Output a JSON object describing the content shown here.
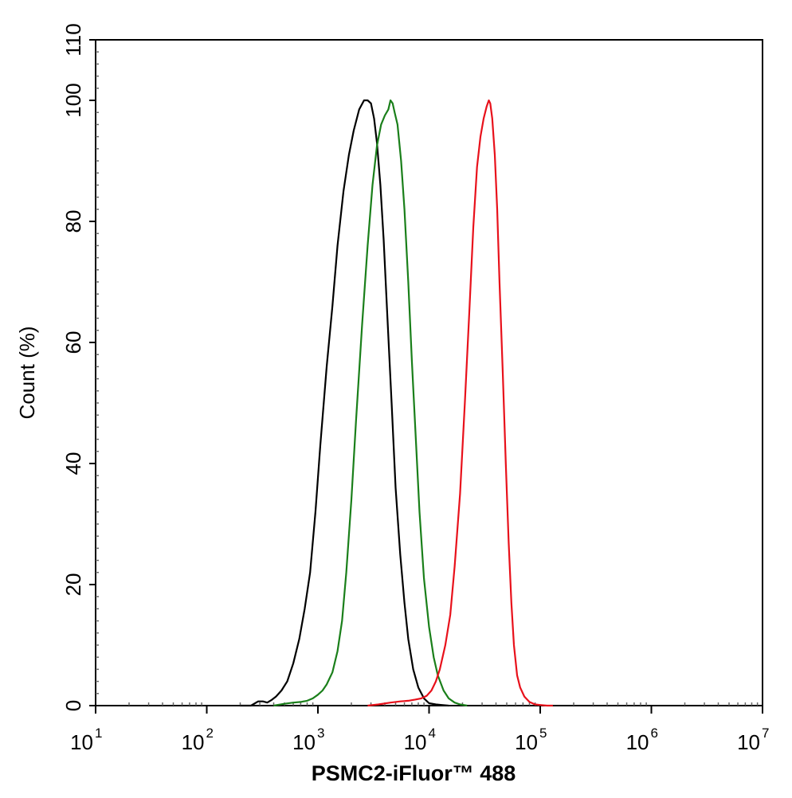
{
  "chart_data": {
    "type": "line",
    "xscale": "log",
    "xlim": [
      10,
      10000000
    ],
    "ylim": [
      0,
      110
    ],
    "grid": false,
    "legend": "none",
    "xlabel": "PSMC2-iFluor™ 488",
    "ylabel": "Count  (%)",
    "x_ticks": [
      {
        "base": "10",
        "exp": "1",
        "value": 10
      },
      {
        "base": "10",
        "exp": "2",
        "value": 100
      },
      {
        "base": "10",
        "exp": "3",
        "value": 1000
      },
      {
        "base": "10",
        "exp": "4",
        "value": 10000
      },
      {
        "base": "10",
        "exp": "5",
        "value": 100000
      },
      {
        "base": "10",
        "exp": "6",
        "value": 1000000
      },
      {
        "base": "10",
        "exp": "7",
        "value": 10000000
      }
    ],
    "y_ticks": [
      {
        "label": "0",
        "value": 0
      },
      {
        "label": "20",
        "value": 20
      },
      {
        "label": "40",
        "value": 40
      },
      {
        "label": "60",
        "value": 60
      },
      {
        "label": "80",
        "value": 80
      },
      {
        "label": "100",
        "value": 100
      },
      {
        "label": "110",
        "value": 110
      }
    ],
    "series": [
      {
        "color": "#000000",
        "x": [
          200,
          250,
          290,
          320,
          350,
          380,
          420,
          470,
          530,
          600,
          680,
          760,
          850,
          950,
          1050,
          1200,
          1350,
          1500,
          1700,
          1900,
          2100,
          2350,
          2600,
          2800,
          3000,
          3200,
          3400,
          3650,
          3900,
          4200,
          4600,
          5000,
          5500,
          6000,
          6500,
          7200,
          8000,
          9000,
          10000,
          11500,
          13000,
          15000
        ],
        "y": [
          0,
          0,
          0.7,
          0.7,
          0.5,
          0.9,
          1.5,
          2.5,
          4,
          7,
          11,
          16,
          22,
          32,
          43,
          56,
          66,
          76,
          85,
          91,
          95,
          98.5,
          100,
          100,
          99.5,
          97,
          93,
          86,
          77,
          65,
          50,
          36,
          25,
          17,
          11,
          6,
          3,
          1.2,
          0.4,
          0.2,
          0.1,
          0
        ]
      },
      {
        "color": "#1a7f1a",
        "x": [
          400,
          500,
          600,
          700,
          800,
          900,
          1000,
          1100,
          1200,
          1350,
          1500,
          1650,
          1800,
          2000,
          2200,
          2500,
          2800,
          3100,
          3400,
          3700,
          4000,
          4300,
          4500,
          4700,
          4900,
          5200,
          5600,
          6000,
          6500,
          7000,
          7600,
          8200,
          9000,
          10000,
          11000,
          12000,
          13500,
          15000,
          17000,
          19000,
          22000
        ],
        "y": [
          0,
          0.3,
          0.5,
          0.6,
          0.8,
          1.2,
          1.8,
          2.5,
          3.5,
          5.5,
          9,
          14,
          22,
          34,
          47,
          63,
          76,
          86,
          92.5,
          96,
          97.5,
          98.5,
          100,
          99.5,
          98,
          96,
          90,
          82,
          70,
          57,
          44,
          32,
          21,
          13,
          8,
          5,
          2.5,
          1.2,
          0.5,
          0.2,
          0
        ]
      },
      {
        "color": "#e8111b",
        "x": [
          2800,
          3500,
          4500,
          5500,
          6500,
          7500,
          8500,
          9500,
          10500,
          11500,
          12500,
          14000,
          15500,
          17000,
          19000,
          21000,
          23000,
          25000,
          27000,
          29000,
          31000,
          33000,
          34500,
          35500,
          37000,
          39000,
          41000,
          43000,
          46000,
          49000,
          52000,
          55000,
          58000,
          62000,
          66000,
          72000,
          80000,
          90000,
          100000,
          115000,
          130000
        ],
        "y": [
          0,
          0.2,
          0.5,
          0.7,
          0.8,
          1,
          1.2,
          1.6,
          2.5,
          4,
          6,
          10,
          15,
          23,
          35,
          50,
          65,
          79,
          89,
          94,
          97,
          99,
          100,
          99.5,
          97,
          91,
          82,
          70,
          55,
          40,
          27,
          17,
          10,
          5,
          3,
          1.5,
          0.6,
          0.2,
          0.1,
          0,
          0
        ]
      }
    ]
  }
}
